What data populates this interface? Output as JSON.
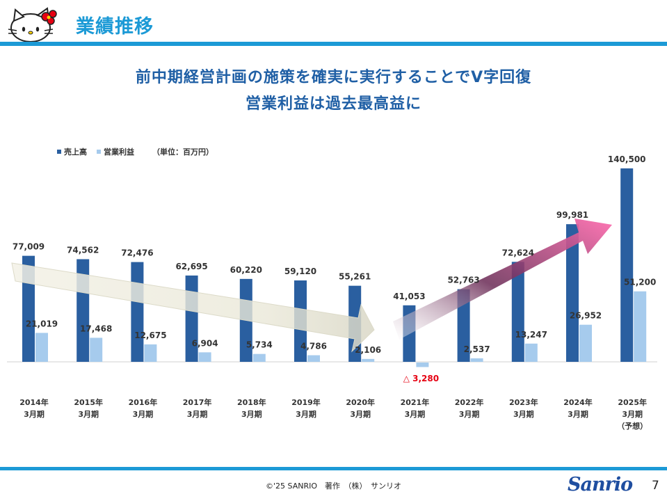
{
  "header": {
    "title": "業績推移"
  },
  "headline": {
    "line1": "前中期経営計画の施策を確実に実行することでV字回復",
    "line2": "営業利益は過去最高益に"
  },
  "legend": {
    "series1": "売上高",
    "series2": "営業利益",
    "unit": "（単位：百万円）"
  },
  "colors": {
    "sales": "#2a5fa0",
    "profit": "#a6cbed",
    "accent": "#1c9ad6",
    "negative": "#e60012"
  },
  "chart_data": {
    "type": "bar",
    "title": "",
    "unit": "百万円",
    "categories": [
      [
        "2014年",
        "3月期"
      ],
      [
        "2015年",
        "3月期"
      ],
      [
        "2016年",
        "3月期"
      ],
      [
        "2017年",
        "3月期"
      ],
      [
        "2018年",
        "3月期"
      ],
      [
        "2019年",
        "3月期"
      ],
      [
        "2020年",
        "3月期"
      ],
      [
        "2021年",
        "3月期"
      ],
      [
        "2022年",
        "3月期"
      ],
      [
        "2023年",
        "3月期"
      ],
      [
        "2024年",
        "3月期"
      ],
      [
        "2025年",
        "3月期",
        "（予想）"
      ]
    ],
    "series": [
      {
        "name": "売上高",
        "values": [
          77009,
          74562,
          72476,
          62695,
          60220,
          59120,
          55261,
          41053,
          52763,
          72624,
          99981,
          140500
        ],
        "labels": [
          "77,009",
          "74,562",
          "72,476",
          "62,695",
          "60,220",
          "59,120",
          "55,261",
          "41,053",
          "52,763",
          "72,624",
          "99,981",
          "140,500"
        ]
      },
      {
        "name": "営業利益",
        "values": [
          21019,
          17468,
          12675,
          6904,
          5734,
          4786,
          2106,
          -3280,
          2537,
          13247,
          26952,
          51200
        ],
        "labels": [
          "21,019",
          "17,468",
          "12,675",
          "6,904",
          "5,734",
          "4,786",
          "2,106",
          "△ 3,280",
          "2,537",
          "13,247",
          "26,952",
          "51,200"
        ]
      }
    ],
    "ylim": [
      -5000,
      145000
    ]
  },
  "footer": {
    "copyright": "©'25 SANRIO　著作　（株）　サンリオ",
    "logo": "Sanrio",
    "page": "7"
  }
}
